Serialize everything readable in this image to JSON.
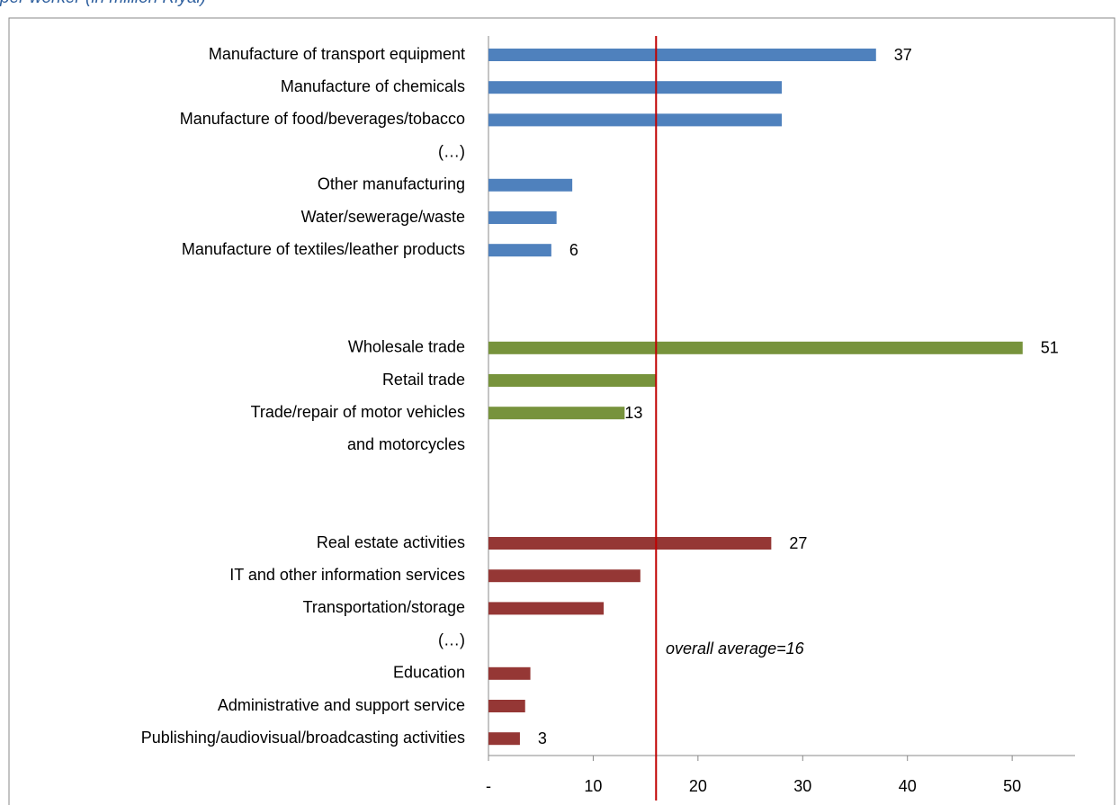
{
  "chart_data": {
    "type": "barh",
    "title": "per worker (in million Riyal)",
    "categories": [
      "Manufacture of transport equipment",
      "Manufacture of chemicals",
      "Manufacture of food/beverages/tobacco",
      "(…)",
      "Other manufacturing",
      "Water/sewerage/waste",
      "Manufacture of textiles/leather products",
      null,
      null,
      "Wholesale trade",
      "Retail trade",
      "Trade/repair of motor vehicles",
      "and motorcycles",
      null,
      null,
      "Real estate activities",
      "IT and other information services",
      "Transportation/storage",
      "(…)",
      "Education",
      "Administrative and support service",
      "Publishing/audiovisual/broadcasting activities"
    ],
    "values": [
      37,
      28,
      28,
      null,
      8,
      6.5,
      6,
      null,
      null,
      51,
      16,
      13,
      null,
      null,
      null,
      27,
      14.5,
      11,
      null,
      4,
      3.5,
      3
    ],
    "value_labels": [
      "37",
      null,
      null,
      null,
      null,
      null,
      "6",
      null,
      null,
      "51",
      null,
      "13",
      null,
      null,
      null,
      "27",
      null,
      null,
      null,
      null,
      null,
      "3"
    ],
    "colors": [
      "#4f81bd",
      "#4f81bd",
      "#4f81bd",
      null,
      "#4f81bd",
      "#4f81bd",
      "#4f81bd",
      null,
      null,
      "#77933c",
      "#77933c",
      "#77933c",
      null,
      null,
      null,
      "#953735",
      "#953735",
      "#953735",
      null,
      "#953735",
      "#953735",
      "#953735"
    ],
    "xlim": [
      0,
      56
    ],
    "xticks": [
      {
        "value": 0,
        "label": "-"
      },
      10,
      20,
      30,
      40,
      50
    ],
    "reference_line": {
      "value": 16,
      "label": "overall average=16",
      "color": "#c00000"
    }
  }
}
